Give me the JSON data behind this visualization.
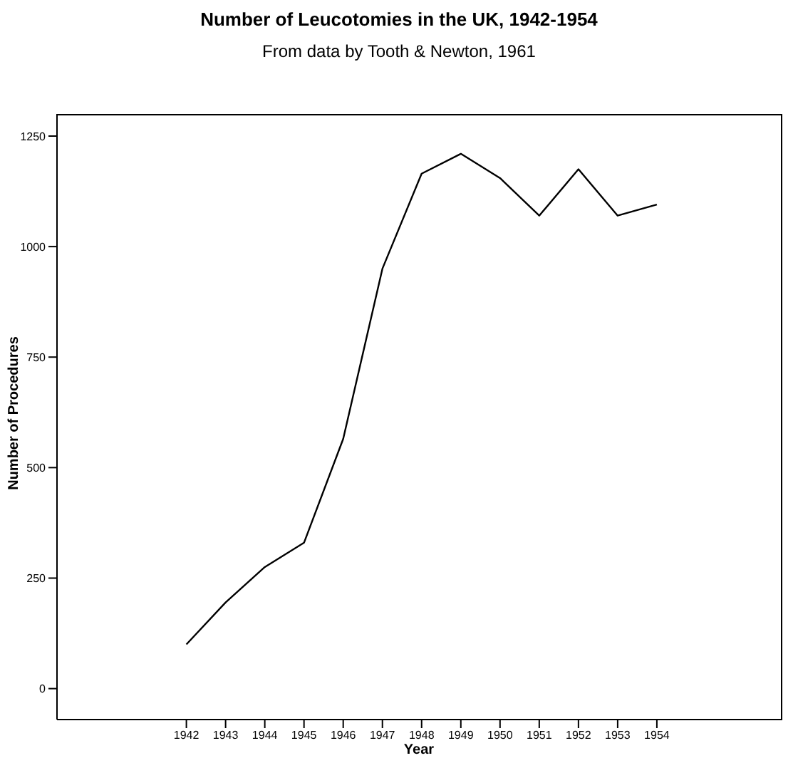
{
  "chart_data": {
    "type": "line",
    "title": "Number of Leucotomies in the UK, 1942-1954",
    "subtitle": "From data by Tooth & Newton, 1961",
    "xlabel": "Year",
    "ylabel": "Number of Procedures",
    "x": [
      1942,
      1943,
      1944,
      1945,
      1946,
      1947,
      1948,
      1949,
      1950,
      1951,
      1952,
      1953,
      1954
    ],
    "series": [
      {
        "color": "#000000",
        "values": [
          100,
          195,
          275,
          330,
          565,
          950,
          1165,
          1210,
          1155,
          1070,
          1175,
          1070,
          1095
        ]
      }
    ],
    "xlim": [
      1938.7,
      1957.2
    ],
    "xticks": [
      1942,
      1943,
      1944,
      1945,
      1946,
      1947,
      1948,
      1949,
      1950,
      1951,
      1952,
      1953,
      1954
    ],
    "ylim": [
      -70,
      1300
    ],
    "yticks": [
      0,
      250,
      500,
      750,
      1000,
      1250
    ],
    "grid": false,
    "legend": false,
    "marker": "none",
    "line_style": "solid"
  }
}
